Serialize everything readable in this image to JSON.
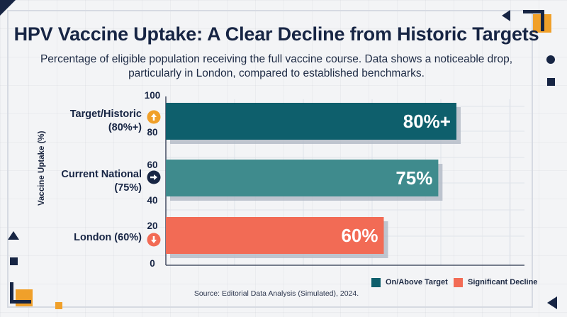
{
  "header": {
    "title": "HPV Vaccine Uptake: A Clear Decline from Historic Targets",
    "subtitle": "Percentage of eligible population receiving the full vaccine course. Data shows a noticeable drop, particularly in London, compared to established benchmarks."
  },
  "chart_data": {
    "type": "bar",
    "orientation": "horizontal",
    "ylabel": "Vaccine Uptake (%)",
    "yticks": [
      "100",
      "80",
      "60",
      "40",
      "20",
      "0"
    ],
    "xlim": [
      0,
      100
    ],
    "grid": true,
    "legend_position": "bottom-right",
    "categories": [
      {
        "label_line1": "Target/Historic",
        "label_line2": "(80%+)",
        "value": 80,
        "value_label": "80%+",
        "status": "target",
        "color": "#0e5f6c",
        "icon": "arrow-up-icon",
        "icon_color": "#f0a02a"
      },
      {
        "label_line1": "Current National",
        "label_line2": "(75%)",
        "value": 75,
        "value_label": "75%",
        "status": "target",
        "color": "#3f8b8d",
        "icon": "arrow-right-icon",
        "icon_color": "#172544"
      },
      {
        "label_line1": "London (60%)",
        "label_line2": "",
        "value": 60,
        "value_label": "60%",
        "status": "decline",
        "color": "#f26b55",
        "icon": "arrow-down-icon",
        "icon_color": "#f26b55"
      }
    ],
    "legend": [
      {
        "label": "On/Above Target",
        "color": "#0e5f6c"
      },
      {
        "label": "Significant Decline",
        "color": "#f26b55"
      }
    ]
  },
  "footer": {
    "source": "Source: Editorial Data Analysis (Simulated), 2024."
  },
  "colors": {
    "navy": "#172544",
    "accent_yellow": "#f0a02a",
    "background": "#f3f4f6"
  }
}
